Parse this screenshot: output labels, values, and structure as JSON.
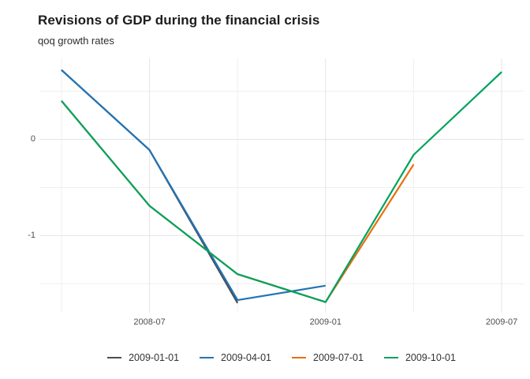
{
  "header": {
    "title": "Revisions of GDP during the financial crisis",
    "subtitle": "qoq growth rates"
  },
  "chart_data": {
    "type": "line",
    "title": "Revisions of GDP during the financial crisis",
    "subtitle": "qoq growth rates",
    "x_dates": [
      "2008-04",
      "2008-07",
      "2008-10",
      "2009-01",
      "2009-04",
      "2009-07"
    ],
    "x_months": [
      0,
      3,
      6,
      9,
      12,
      15
    ],
    "series": [
      {
        "name": "2009-01-01",
        "color": "#4d4d4d",
        "values": [
          0.72,
          -0.11,
          -1.7,
          null,
          null,
          null
        ]
      },
      {
        "name": "2009-04-01",
        "color": "#2274b5",
        "values": [
          0.72,
          -0.11,
          -1.67,
          -1.52,
          null,
          null
        ]
      },
      {
        "name": "2009-07-01",
        "color": "#e86f0c",
        "values": [
          0.4,
          -0.69,
          -1.4,
          -1.69,
          -0.26,
          null
        ]
      },
      {
        "name": "2009-10-01",
        "color": "#00a25f",
        "values": [
          0.4,
          -0.69,
          -1.4,
          -1.69,
          -0.16,
          0.7
        ]
      }
    ],
    "xlabel": "",
    "ylabel": "",
    "xlim_months": [
      -0.75,
      15.75
    ],
    "ylim": [
      -1.8,
      0.84
    ],
    "x_ticks": {
      "major_months": [
        3,
        9,
        15
      ],
      "major_labels": [
        "2008-07",
        "2009-01",
        "2009-07"
      ],
      "minor_months": [
        0,
        6,
        12
      ]
    },
    "y_ticks": {
      "major_values": [
        0,
        -1
      ],
      "major_labels": [
        "0",
        "-1"
      ],
      "minor_values": [
        0.5,
        -0.5,
        -1.5
      ]
    },
    "grid": true,
    "legend_position": "bottom",
    "grid_major_color": "#e5e5e5",
    "grid_minor_color": "#f0f0f0",
    "line_width": 2.2
  }
}
